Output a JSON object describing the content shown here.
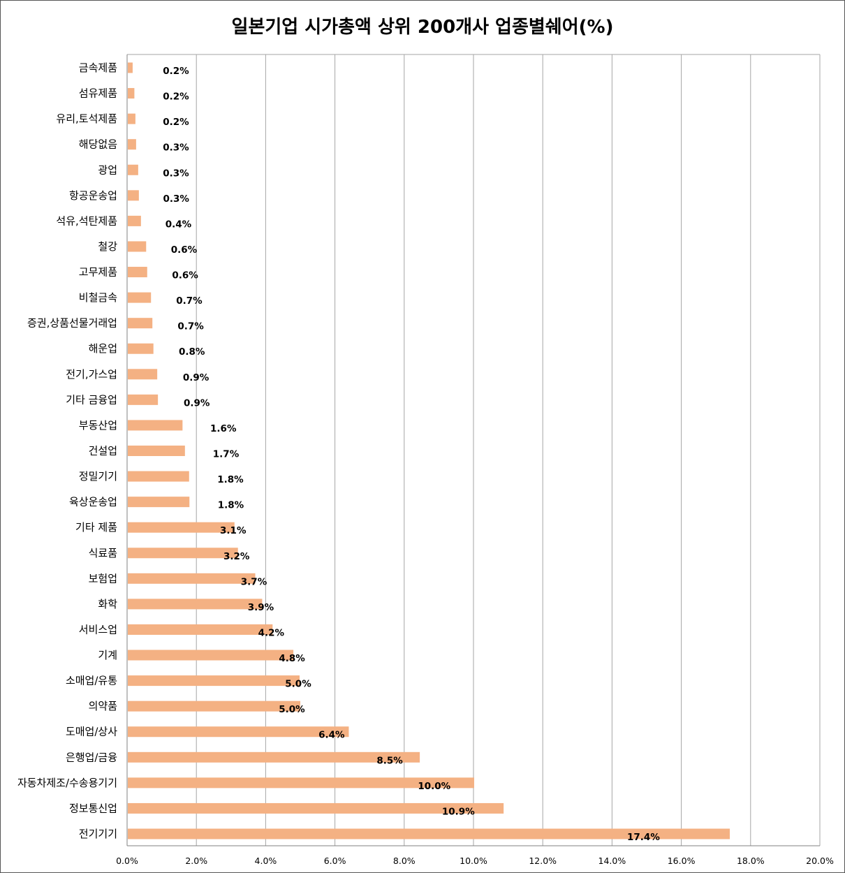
{
  "chart_data": {
    "type": "bar",
    "orientation": "horizontal",
    "title": "일본기업 시가총액 상위 200개사 업종별쉐어(%)",
    "xlabel": "",
    "ylabel": "",
    "xlim": [
      0,
      20
    ],
    "x_ticks": [
      "0.0%",
      "2.0%",
      "4.0%",
      "6.0%",
      "8.0%",
      "10.0%",
      "12.0%",
      "14.0%",
      "16.0%",
      "18.0%",
      "20.0%"
    ],
    "grid": true,
    "legend": "none",
    "bar_color": "#f4b183",
    "categories": [
      "금속제품",
      "섬유제품",
      "유리,토석제품",
      "해당없음",
      "광업",
      "항공운송업",
      "석유,석탄제품",
      "철강",
      "고무제품",
      "비철금속",
      "증권,상품선물거래업",
      "해운업",
      "전기,가스업",
      "기타 금융업",
      "부동산업",
      "건설업",
      "정밀기기",
      "육상운송업",
      "기타 제품",
      "식료품",
      "보험업",
      "화학",
      "서비스업",
      "기계",
      "소매업/유통",
      "의약품",
      "도매업/상사",
      "은행업/금융",
      "자동차제조/수송용기기",
      "정보통신업",
      "전기기기"
    ],
    "values": [
      0.16,
      0.21,
      0.24,
      0.26,
      0.32,
      0.34,
      0.4,
      0.55,
      0.58,
      0.69,
      0.73,
      0.76,
      0.87,
      0.89,
      1.6,
      1.67,
      1.79,
      1.8,
      3.1,
      3.2,
      3.7,
      3.9,
      4.2,
      4.8,
      4.98,
      5.0,
      6.4,
      8.45,
      10.02,
      10.87,
      17.4
    ],
    "data_labels": [
      "0.2%",
      "0.2%",
      "0.2%",
      "0.3%",
      "0.3%",
      "0.3%",
      "0.4%",
      "0.6%",
      "0.6%",
      "0.7%",
      "0.7%",
      "0.8%",
      "0.9%",
      "0.9%",
      "1.6%",
      "1.7%",
      "1.8%",
      "1.8%",
      "3.1%",
      "3.2%",
      "3.7%",
      "3.9%",
      "4.2%",
      "4.8%",
      "5.0%",
      "5.0%",
      "6.4%",
      "8.5%",
      "10.0%",
      "10.9%",
      "17.4%"
    ]
  }
}
